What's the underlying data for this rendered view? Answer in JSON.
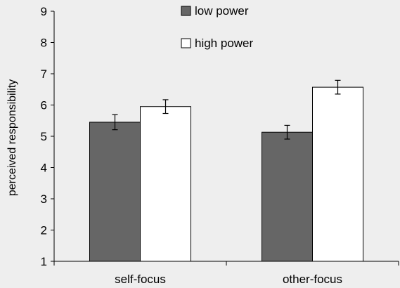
{
  "chart_data": {
    "type": "bar",
    "ylabel": "perceived responsibility",
    "xlabel": "",
    "ylim": [
      1,
      9
    ],
    "yticks": [
      1,
      2,
      3,
      4,
      5,
      6,
      7,
      8,
      9
    ],
    "grid": false,
    "legend_position": "top-center",
    "categories": [
      "self-focus",
      "other-focus"
    ],
    "series": [
      {
        "name": "low power",
        "values": [
          5.45,
          5.13
        ],
        "errors": [
          0.24,
          0.22
        ],
        "color": "#666666"
      },
      {
        "name": "high power",
        "values": [
          5.95,
          6.57
        ],
        "errors": [
          0.22,
          0.22
        ],
        "color": "#ffffff"
      }
    ]
  }
}
